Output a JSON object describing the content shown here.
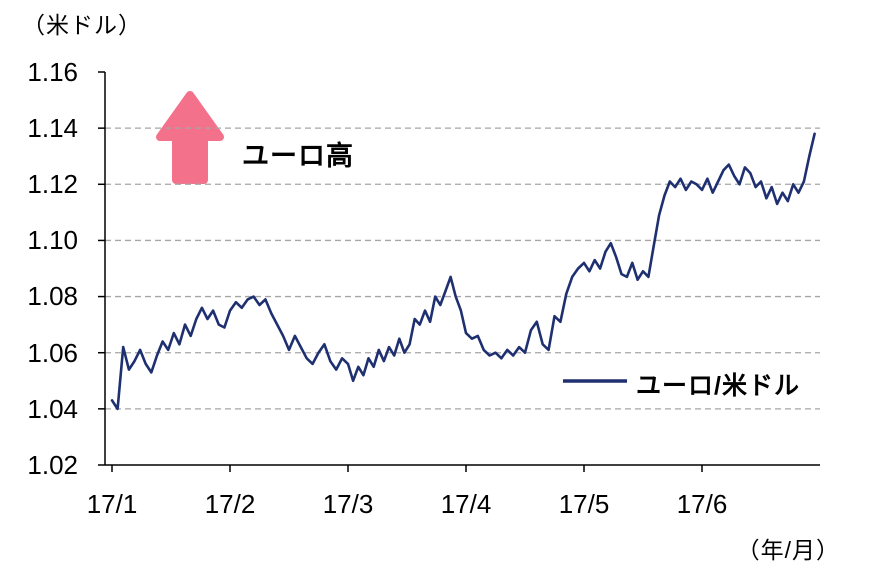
{
  "chart_data": {
    "type": "line",
    "y_axis_unit": "（米ドル）",
    "x_axis_unit": "（年/月）",
    "annotation": "ユーロ高",
    "legend_position": "inside-lower-right",
    "grid": "horizontal-dashed",
    "y_range": [
      1.02,
      1.16
    ],
    "y_step": 0.02,
    "y_tick_labels": [
      "1.16",
      "1.14",
      "1.12",
      "1.10",
      "1.08",
      "1.06",
      "1.04",
      "1.02"
    ],
    "x_tick_labels": [
      "17/1",
      "17/2",
      "17/3",
      "17/4",
      "17/5",
      "17/6"
    ],
    "colors": {
      "line": "#1F3070",
      "arrow": "#F4718B",
      "grid": "#A6A6A6",
      "axis": "#000000"
    },
    "series": [
      {
        "name": "ユーロ/米ドル",
        "months": [
          "17/1",
          "17/2",
          "17/3",
          "17/4",
          "17/5",
          "17/6"
        ],
        "monthly_values": [
          [
            1.043,
            1.04,
            1.062,
            1.054,
            1.057,
            1.061,
            1.056,
            1.053,
            1.059,
            1.064,
            1.061,
            1.067,
            1.063,
            1.07,
            1.066,
            1.072,
            1.076,
            1.072,
            1.075,
            1.07,
            1.069
          ],
          [
            1.075,
            1.078,
            1.076,
            1.079,
            1.08,
            1.077,
            1.079,
            1.074,
            1.07,
            1.066,
            1.061,
            1.066,
            1.062,
            1.058,
            1.056,
            1.06,
            1.063,
            1.057,
            1.054,
            1.058
          ],
          [
            1.056,
            1.05,
            1.055,
            1.052,
            1.058,
            1.055,
            1.061,
            1.057,
            1.062,
            1.059,
            1.065,
            1.06,
            1.063,
            1.072,
            1.07,
            1.075,
            1.071,
            1.08,
            1.077,
            1.082,
            1.087,
            1.08,
            1.075
          ],
          [
            1.067,
            1.065,
            1.066,
            1.061,
            1.059,
            1.06,
            1.058,
            1.061,
            1.059,
            1.062,
            1.06,
            1.068,
            1.071,
            1.063,
            1.061,
            1.073,
            1.071,
            1.081,
            1.087,
            1.09
          ],
          [
            1.092,
            1.089,
            1.093,
            1.09,
            1.096,
            1.099,
            1.094,
            1.088,
            1.087,
            1.092,
            1.086,
            1.089,
            1.087,
            1.098,
            1.109,
            1.116,
            1.121,
            1.119,
            1.122,
            1.118,
            1.121,
            1.12
          ],
          [
            1.118,
            1.122,
            1.117,
            1.121,
            1.125,
            1.127,
            1.123,
            1.12,
            1.126,
            1.124,
            1.119,
            1.121,
            1.115,
            1.119,
            1.113,
            1.117,
            1.114,
            1.12,
            1.117,
            1.121,
            1.13,
            1.138
          ]
        ]
      }
    ]
  }
}
